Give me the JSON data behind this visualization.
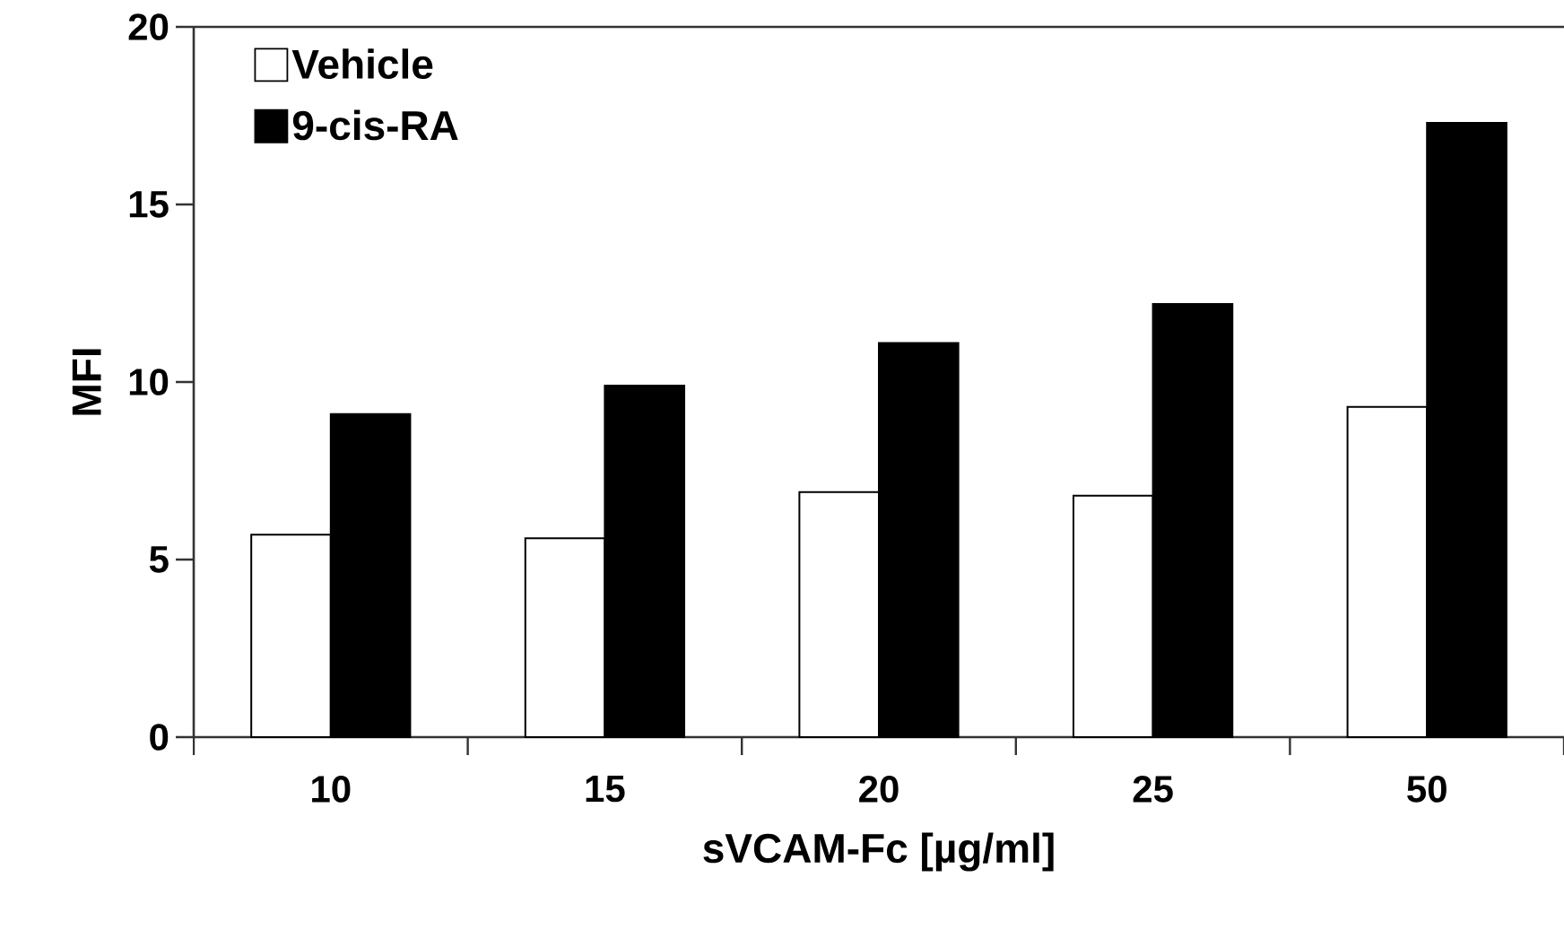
{
  "chart_data": {
    "type": "bar",
    "xlabel": "sVCAM-Fc [µg/ml]",
    "ylabel": "MFI",
    "categories": [
      "10",
      "15",
      "20",
      "25",
      "50"
    ],
    "series": [
      {
        "name": "Vehicle",
        "color": "#ffffff",
        "values": [
          5.7,
          5.6,
          6.9,
          6.8,
          9.3
        ]
      },
      {
        "name": "9-cis-RA",
        "color": "#000000",
        "values": [
          9.1,
          9.9,
          11.1,
          12.2,
          17.3
        ]
      }
    ],
    "ylim": [
      0,
      20
    ],
    "yticks": [
      0,
      5,
      10,
      15,
      20
    ],
    "legend": "top left",
    "grid": false
  }
}
